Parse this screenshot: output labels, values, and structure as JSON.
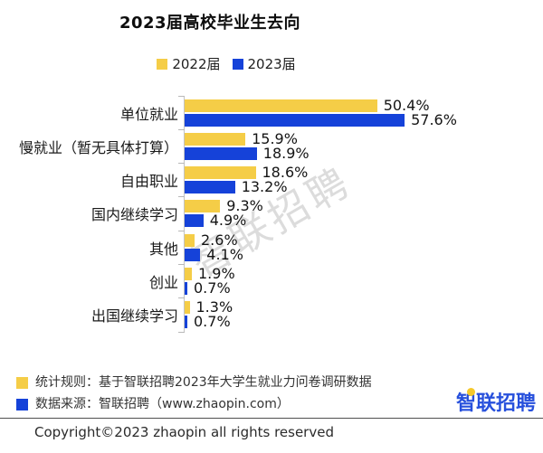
{
  "header": {
    "title": "2023届高校毕业生去向"
  },
  "chart_data": {
    "type": "bar",
    "orientation": "horizontal",
    "title": "2023届高校毕业生去向",
    "categories": [
      "单位就业",
      "慢就业（暂无具体打算）",
      "自由职业",
      "国内继续学习",
      "其他",
      "创业",
      "出国继续学习"
    ],
    "series": [
      {
        "name": "2022届",
        "color": "#f5cd47",
        "values": [
          50.4,
          15.9,
          18.6,
          9.3,
          2.6,
          1.9,
          1.3
        ]
      },
      {
        "name": "2023届",
        "color": "#1542d9",
        "values": [
          57.6,
          18.9,
          13.2,
          4.9,
          4.1,
          0.7,
          0.7
        ]
      }
    ],
    "value_suffix": "%",
    "xlim": [
      0,
      60
    ],
    "legend_position": "top-center",
    "grid": false,
    "axis_color": "#c3c3c3"
  },
  "watermark": {
    "text": "智联招聘"
  },
  "footer": {
    "notes": [
      {
        "swatch_color": "#f5cd47",
        "text": "统计规则：基于智联招聘2023年大学生就业力问卷调研数据"
      },
      {
        "swatch_color": "#1542d9",
        "text": "数据来源：智联招聘（www.zhaopin.com）"
      }
    ],
    "logo_text": "智联招聘",
    "copyright": "Copyright©2023 zhaopin all rights reserved"
  }
}
